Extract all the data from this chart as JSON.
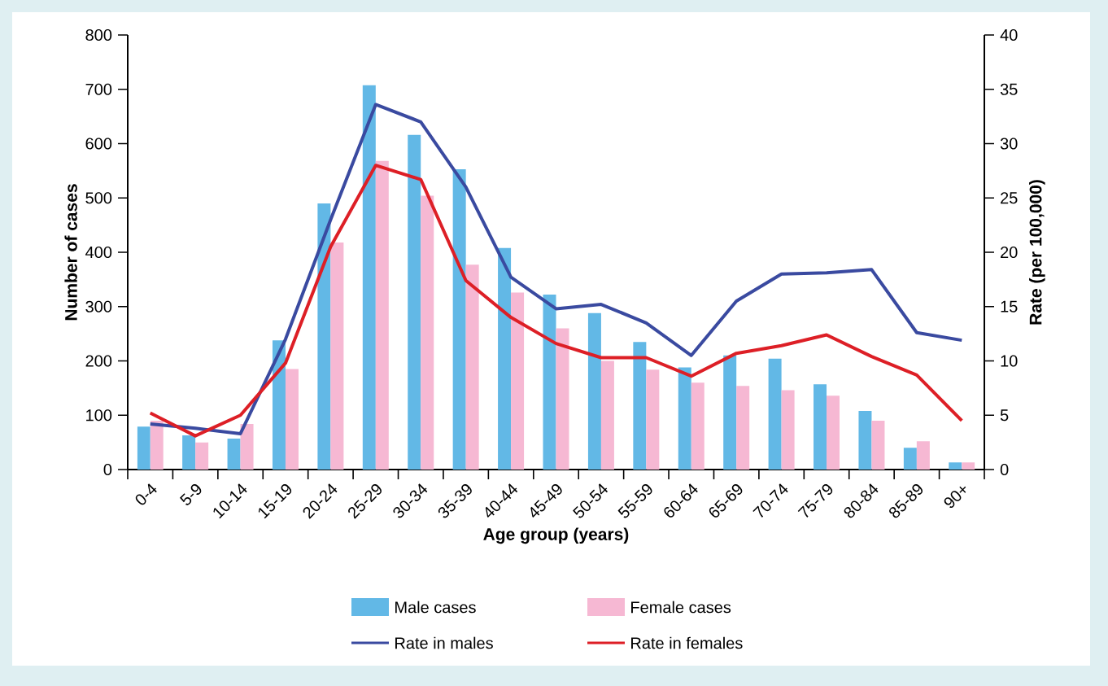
{
  "chart_data": {
    "type": "bar",
    "xlabel": "Age group (years)",
    "ylabel": "Number of cases",
    "y2label": "Rate (per 100,000)",
    "categories": [
      "0-4",
      "5-9",
      "10-14",
      "15-19",
      "20-24",
      "25-29",
      "30-34",
      "35-39",
      "40-44",
      "45-49",
      "50-54",
      "55-59",
      "60-64",
      "65-69",
      "70-74",
      "75-79",
      "80-84",
      "85-89",
      "90+"
    ],
    "series": [
      {
        "name": "Male cases",
        "color": "#62b8e6",
        "values": [
          79,
          63,
          57,
          238,
          490,
          708,
          616,
          553,
          408,
          322,
          288,
          235,
          188,
          210,
          204,
          157,
          108,
          40,
          13
        ]
      },
      {
        "name": "Female cases",
        "color": "#f6b8d3",
        "values": [
          90,
          50,
          84,
          185,
          418,
          568,
          504,
          377,
          326,
          260,
          200,
          184,
          160,
          154,
          146,
          136,
          90,
          52,
          13
        ]
      },
      {
        "name": "Rate in males",
        "type": "line",
        "axis": "y2",
        "color": "#3a4aa0",
        "values": [
          4.2,
          3.8,
          3.3,
          12.0,
          23.0,
          33.6,
          32.0,
          26.0,
          17.7,
          14.8,
          15.2,
          13.5,
          10.5,
          15.5,
          18.0,
          18.1,
          18.4,
          12.6,
          11.9
        ]
      },
      {
        "name": "Rate in females",
        "type": "line",
        "axis": "y2",
        "color": "#dd1f26",
        "values": [
          5.2,
          3.1,
          5.0,
          9.8,
          20.5,
          28.0,
          26.7,
          17.4,
          14.0,
          11.6,
          10.3,
          10.3,
          8.6,
          10.7,
          11.4,
          12.4,
          10.4,
          8.7,
          4.5
        ]
      }
    ],
    "ylim": [
      0,
      800
    ],
    "yticks": [
      0,
      100,
      200,
      300,
      400,
      500,
      600,
      700,
      800
    ],
    "y2lim": [
      0,
      40
    ],
    "y2ticks": [
      0,
      5,
      10,
      15,
      20,
      25,
      30,
      35,
      40
    ],
    "legend": "bottom"
  }
}
